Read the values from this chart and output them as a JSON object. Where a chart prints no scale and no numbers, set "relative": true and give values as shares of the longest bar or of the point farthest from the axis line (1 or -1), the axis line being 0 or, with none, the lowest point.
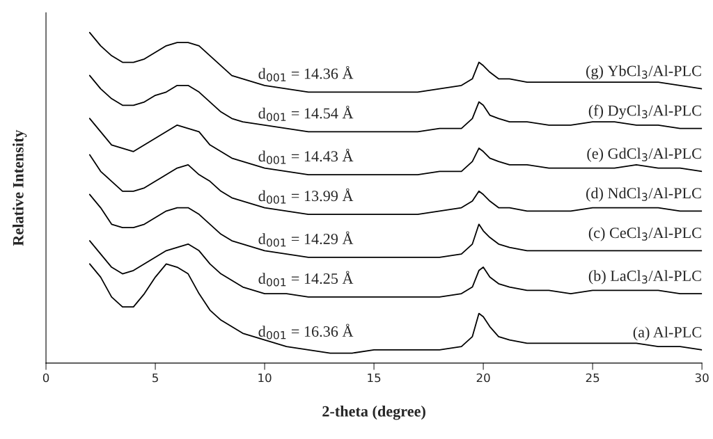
{
  "chart_data": {
    "type": "line",
    "relative": true,
    "xlabel": "2-theta (degree)",
    "ylabel": "Relative Intensity",
    "xlim": [
      0,
      30
    ],
    "xticks": [
      0,
      5,
      10,
      15,
      20,
      25,
      30
    ],
    "grid": false,
    "legend": false,
    "tick_labels": "x",
    "x": [
      2,
      2.5,
      3,
      3.5,
      4,
      4.5,
      5,
      5.5,
      6,
      6.5,
      7,
      7.5,
      8,
      8.5,
      9,
      10,
      11,
      12,
      13,
      14,
      15,
      16,
      17,
      18,
      19,
      19.5,
      19.8,
      20,
      20.3,
      20.7,
      21.2,
      22,
      23,
      24,
      25,
      26,
      27,
      28,
      29,
      30
    ],
    "series": [
      {
        "name": "(a) Al-PLC",
        "color": "#000000",
        "values": [
          0.3,
          0.26,
          0.2,
          0.17,
          0.17,
          0.21,
          0.26,
          0.3,
          0.29,
          0.27,
          0.21,
          0.16,
          0.13,
          0.11,
          0.09,
          0.07,
          0.05,
          0.04,
          0.03,
          0.03,
          0.04,
          0.04,
          0.04,
          0.04,
          0.05,
          0.08,
          0.15,
          0.14,
          0.11,
          0.08,
          0.07,
          0.06,
          0.06,
          0.06,
          0.06,
          0.06,
          0.06,
          0.05,
          0.05,
          0.04
        ]
      },
      {
        "name": "(b) LaCl$_{3}$/Al-PLC",
        "color": "#000000",
        "values": [
          0.37,
          0.33,
          0.29,
          0.27,
          0.28,
          0.3,
          0.32,
          0.34,
          0.35,
          0.36,
          0.34,
          0.3,
          0.27,
          0.25,
          0.23,
          0.21,
          0.21,
          0.2,
          0.2,
          0.2,
          0.2,
          0.2,
          0.2,
          0.2,
          0.21,
          0.23,
          0.28,
          0.29,
          0.26,
          0.24,
          0.23,
          0.22,
          0.22,
          0.21,
          0.22,
          0.22,
          0.22,
          0.22,
          0.21,
          0.21
        ]
      },
      {
        "name": "(c) CeCl$_{3}$/Al-PLC",
        "color": "#000000",
        "values": [
          0.51,
          0.47,
          0.42,
          0.41,
          0.41,
          0.42,
          0.44,
          0.46,
          0.47,
          0.47,
          0.45,
          0.42,
          0.39,
          0.37,
          0.36,
          0.34,
          0.33,
          0.32,
          0.32,
          0.32,
          0.32,
          0.32,
          0.32,
          0.32,
          0.33,
          0.36,
          0.42,
          0.4,
          0.38,
          0.36,
          0.35,
          0.34,
          0.34,
          0.34,
          0.34,
          0.34,
          0.34,
          0.34,
          0.34,
          0.34
        ]
      },
      {
        "name": "(d) NdCl$_{3}$/Al-PLC",
        "color": "#000000",
        "values": [
          0.63,
          0.58,
          0.55,
          0.52,
          0.52,
          0.53,
          0.55,
          0.57,
          0.59,
          0.6,
          0.57,
          0.55,
          0.52,
          0.5,
          0.49,
          0.47,
          0.46,
          0.45,
          0.45,
          0.45,
          0.45,
          0.45,
          0.45,
          0.46,
          0.47,
          0.49,
          0.52,
          0.51,
          0.49,
          0.47,
          0.47,
          0.46,
          0.46,
          0.46,
          0.47,
          0.47,
          0.47,
          0.47,
          0.46,
          0.46
        ]
      },
      {
        "name": "(e) GdCl$_{3}$/Al-PLC",
        "color": "#000000",
        "values": [
          0.74,
          0.7,
          0.66,
          0.65,
          0.64,
          0.66,
          0.68,
          0.7,
          0.72,
          0.71,
          0.7,
          0.66,
          0.64,
          0.62,
          0.61,
          0.59,
          0.58,
          0.57,
          0.57,
          0.57,
          0.57,
          0.57,
          0.57,
          0.58,
          0.58,
          0.61,
          0.65,
          0.64,
          0.62,
          0.61,
          0.6,
          0.6,
          0.59,
          0.59,
          0.59,
          0.59,
          0.6,
          0.59,
          0.59,
          0.58
        ]
      },
      {
        "name": "(f) DyCl$_{3}$/Al-PLC",
        "color": "#000000",
        "values": [
          0.87,
          0.83,
          0.8,
          0.78,
          0.78,
          0.79,
          0.81,
          0.82,
          0.84,
          0.84,
          0.82,
          0.79,
          0.76,
          0.74,
          0.73,
          0.72,
          0.71,
          0.7,
          0.7,
          0.7,
          0.7,
          0.7,
          0.7,
          0.71,
          0.71,
          0.74,
          0.79,
          0.78,
          0.75,
          0.74,
          0.73,
          0.73,
          0.72,
          0.72,
          0.73,
          0.73,
          0.72,
          0.72,
          0.71,
          0.71
        ]
      },
      {
        "name": "(g) YbCl$_{3}$/Al-PLC",
        "color": "#000000",
        "values": [
          1.0,
          0.96,
          0.93,
          0.91,
          0.91,
          0.92,
          0.94,
          0.96,
          0.97,
          0.97,
          0.96,
          0.93,
          0.9,
          0.87,
          0.86,
          0.84,
          0.83,
          0.82,
          0.82,
          0.82,
          0.82,
          0.82,
          0.82,
          0.83,
          0.84,
          0.86,
          0.91,
          0.9,
          0.88,
          0.86,
          0.86,
          0.85,
          0.85,
          0.85,
          0.85,
          0.85,
          0.85,
          0.85,
          0.84,
          0.83
        ]
      }
    ],
    "annotations": [
      "d$_{001}$ = 16.36 Å",
      "d$_{001}$ = 14.25 Å",
      "d$_{001}$ = 14.29 Å",
      "d$_{001}$ = 13.99 Å",
      "d$_{001}$ = 14.43 Å",
      "d$_{001}$ = 14.54 Å",
      "d$_{001}$ = 14.36 Å"
    ]
  }
}
